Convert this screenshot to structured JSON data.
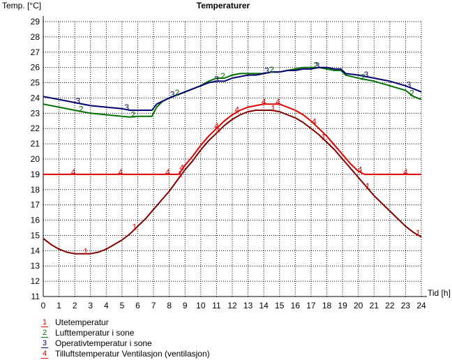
{
  "chart_data": {
    "type": "line",
    "title": "Temperaturer",
    "ylabel": "Temp. [°C]",
    "xlabel": "Tid [h]",
    "xlim": [
      0,
      24
    ],
    "ylim": [
      11,
      29
    ],
    "grid": true,
    "x_ticks": [
      "0",
      "1",
      "2",
      "3",
      "4",
      "5",
      "6",
      "7",
      "8",
      "9",
      "10",
      "11",
      "12",
      "13",
      "14",
      "15",
      "16",
      "17",
      "18",
      "19",
      "20",
      "21",
      "22",
      "23",
      "24"
    ],
    "y_ticks": [
      "11",
      "12",
      "13",
      "14",
      "15",
      "16",
      "17",
      "18",
      "19",
      "20",
      "21",
      "22",
      "23",
      "24",
      "25",
      "26",
      "27",
      "28",
      "29"
    ],
    "series": [
      {
        "id": "1",
        "name": "Utetemperatur",
        "color": "#800000",
        "marker_x": [
          2.7,
          5.8,
          8.7,
          11.1,
          14.6,
          17.8,
          20.6,
          23.8
        ],
        "x": [
          0,
          0.5,
          1,
          1.5,
          2,
          2.5,
          3,
          3.5,
          4,
          4.5,
          5,
          5.5,
          6,
          6.5,
          7,
          7.5,
          8,
          8.5,
          9,
          9.5,
          10,
          10.5,
          11,
          11.5,
          12,
          12.5,
          13,
          13.5,
          14,
          14.5,
          15,
          15.5,
          16,
          16.5,
          17,
          17.5,
          18,
          18.5,
          19,
          19.5,
          20,
          20.5,
          21,
          21.5,
          22,
          22.5,
          23,
          23.5,
          24
        ],
        "values": [
          14.8,
          14.4,
          14.1,
          13.9,
          13.8,
          13.8,
          13.8,
          13.9,
          14.1,
          14.4,
          14.7,
          15.1,
          15.6,
          16.1,
          16.7,
          17.3,
          17.9,
          18.6,
          19.3,
          19.9,
          20.6,
          21.2,
          21.7,
          22.2,
          22.6,
          22.9,
          23.1,
          23.2,
          23.2,
          23.2,
          23.1,
          22.9,
          22.7,
          22.4,
          22.0,
          21.6,
          21.1,
          20.6,
          20.0,
          19.4,
          18.8,
          18.2,
          17.6,
          17.1,
          16.6,
          16.1,
          15.6,
          15.2,
          14.9
        ]
      },
      {
        "id": "2",
        "name": "Lufttemperatur i sone",
        "color": "#007000",
        "marker_x": [
          2.4,
          5.7,
          8.5,
          11.4,
          14.5,
          17.3,
          20.3,
          23.4
        ],
        "x": [
          0,
          1,
          2,
          3,
          4,
          5,
          5.5,
          6,
          6.5,
          6.9,
          7.2,
          7.6,
          8,
          8.5,
          9,
          9.5,
          10,
          10.5,
          11,
          11.5,
          12,
          12.5,
          13,
          13.5,
          14,
          14.5,
          15,
          15.5,
          16,
          16.5,
          17,
          17.5,
          18,
          18.5,
          18.9,
          19.2,
          20,
          21,
          22,
          23,
          23.5,
          24
        ],
        "values": [
          23.6,
          23.4,
          23.2,
          23.0,
          22.9,
          22.8,
          22.75,
          22.8,
          22.8,
          22.8,
          23.4,
          23.8,
          24.0,
          24.2,
          24.4,
          24.6,
          24.8,
          25.1,
          25.3,
          25.3,
          25.5,
          25.6,
          25.6,
          25.6,
          25.6,
          25.7,
          25.7,
          25.8,
          25.9,
          26.0,
          26.0,
          26.0,
          25.9,
          25.8,
          25.8,
          25.5,
          25.3,
          25.1,
          24.8,
          24.5,
          24.1,
          23.9
        ]
      },
      {
        "id": "3",
        "name": "Operativtemperatur i sone",
        "color": "#00006e",
        "marker_x": [
          2.2,
          5.3,
          8.2,
          11.0,
          14.2,
          17.4,
          20.5,
          23.2
        ],
        "x": [
          0,
          1,
          2,
          3,
          4,
          5,
          5.5,
          6,
          6.5,
          6.9,
          7.2,
          7.6,
          8,
          8.5,
          9,
          9.5,
          10,
          10.5,
          11,
          11.5,
          12,
          12.5,
          13,
          13.5,
          14,
          14.5,
          15,
          15.5,
          16,
          16.5,
          17,
          17.5,
          18,
          18.5,
          18.9,
          19.2,
          20,
          21,
          22,
          23,
          23.5,
          24
        ],
        "values": [
          24.1,
          23.9,
          23.7,
          23.5,
          23.4,
          23.3,
          23.2,
          23.2,
          23.2,
          23.2,
          23.6,
          23.8,
          24.0,
          24.2,
          24.4,
          24.6,
          24.8,
          25.0,
          25.1,
          25.1,
          25.3,
          25.4,
          25.5,
          25.5,
          25.6,
          25.7,
          25.7,
          25.8,
          25.8,
          25.9,
          25.9,
          26.0,
          26.0,
          25.9,
          25.9,
          25.6,
          25.5,
          25.3,
          25.1,
          24.8,
          24.6,
          24.4
        ]
      },
      {
        "id": "4",
        "name": "Tilluftstemperatur Ventilasjon (ventilasjon)",
        "color": "#e00000",
        "marker_x": [
          1.9,
          4.9,
          7.9,
          8.8,
          11.0,
          12.3,
          14.0,
          14.9,
          17.2,
          20.1,
          23.0
        ],
        "x": [
          0,
          8.6,
          9,
          9.5,
          10,
          10.5,
          11,
          11.5,
          12,
          12.5,
          13,
          13.5,
          14,
          14.5,
          15,
          15.5,
          16,
          16.5,
          17,
          17.5,
          18,
          18.5,
          19,
          19.5,
          20,
          20.4,
          24
        ],
        "values": [
          19.0,
          19.0,
          19.6,
          20.2,
          20.9,
          21.5,
          22.0,
          22.5,
          22.9,
          23.2,
          23.4,
          23.5,
          23.6,
          23.6,
          23.6,
          23.4,
          23.2,
          22.9,
          22.5,
          22.0,
          21.5,
          20.9,
          20.3,
          19.7,
          19.2,
          19.0,
          19.0
        ]
      }
    ]
  }
}
